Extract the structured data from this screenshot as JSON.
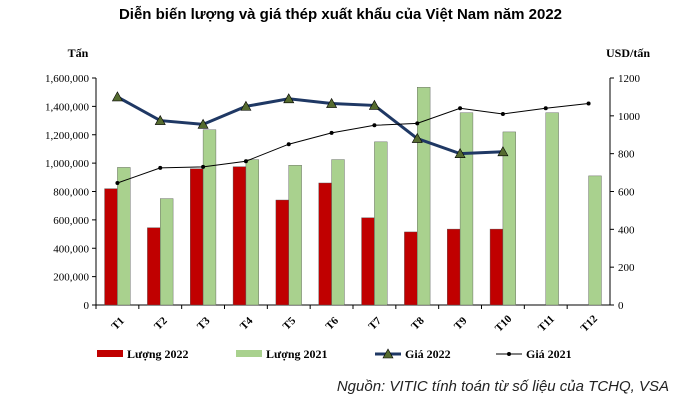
{
  "chart_data": {
    "type": "bar",
    "title": "Diễn biến lượng và giá thép xuất khẩu của Việt Nam năm 2022",
    "y_left_label": "Tấn",
    "y_right_label": "USD/tấn",
    "categories": [
      "T1",
      "T2",
      "T3",
      "T4",
      "T5",
      "T6",
      "T7",
      "T8",
      "T9",
      "T10",
      "T11",
      "T12"
    ],
    "ylim_left": [
      0,
      1600000
    ],
    "ylim_right": [
      0,
      1200
    ],
    "y_left_ticks": [
      "0",
      "200,000",
      "400,000",
      "600,000",
      "800,000",
      "1,000,000",
      "1,200,000",
      "1,400,000",
      "1,600,000"
    ],
    "y_right_ticks": [
      "0",
      "200",
      "400",
      "600",
      "800",
      "1000",
      "1200"
    ],
    "series": [
      {
        "name": "Lượng 2022",
        "kind": "bar",
        "axis": "left",
        "color": "#c00000",
        "values": [
          820000,
          545000,
          960000,
          975000,
          740000,
          860000,
          615000,
          515000,
          535000,
          535000,
          null,
          null
        ]
      },
      {
        "name": "Lượng 2021",
        "kind": "bar",
        "axis": "left",
        "color": "#a9d18e",
        "values": [
          970000,
          750000,
          1235000,
          1025000,
          985000,
          1025000,
          1150000,
          1535000,
          1355000,
          1220000,
          1355000,
          910000
        ]
      },
      {
        "name": "Giá 2022",
        "kind": "line",
        "axis": "right",
        "color": "#1f3864",
        "values": [
          1100,
          975,
          955,
          1050,
          1090,
          1065,
          1055,
          880,
          800,
          810,
          null,
          null
        ]
      },
      {
        "name": "Giá 2021",
        "kind": "line",
        "axis": "right",
        "color": "#000000",
        "values": [
          645,
          725,
          730,
          760,
          850,
          910,
          950,
          960,
          1040,
          1010,
          1040,
          1065
        ]
      }
    ],
    "grid": false,
    "legend_position": "bottom"
  },
  "source": "Nguồn: VITIC tính toán từ số liệu của TCHQ, VSA"
}
